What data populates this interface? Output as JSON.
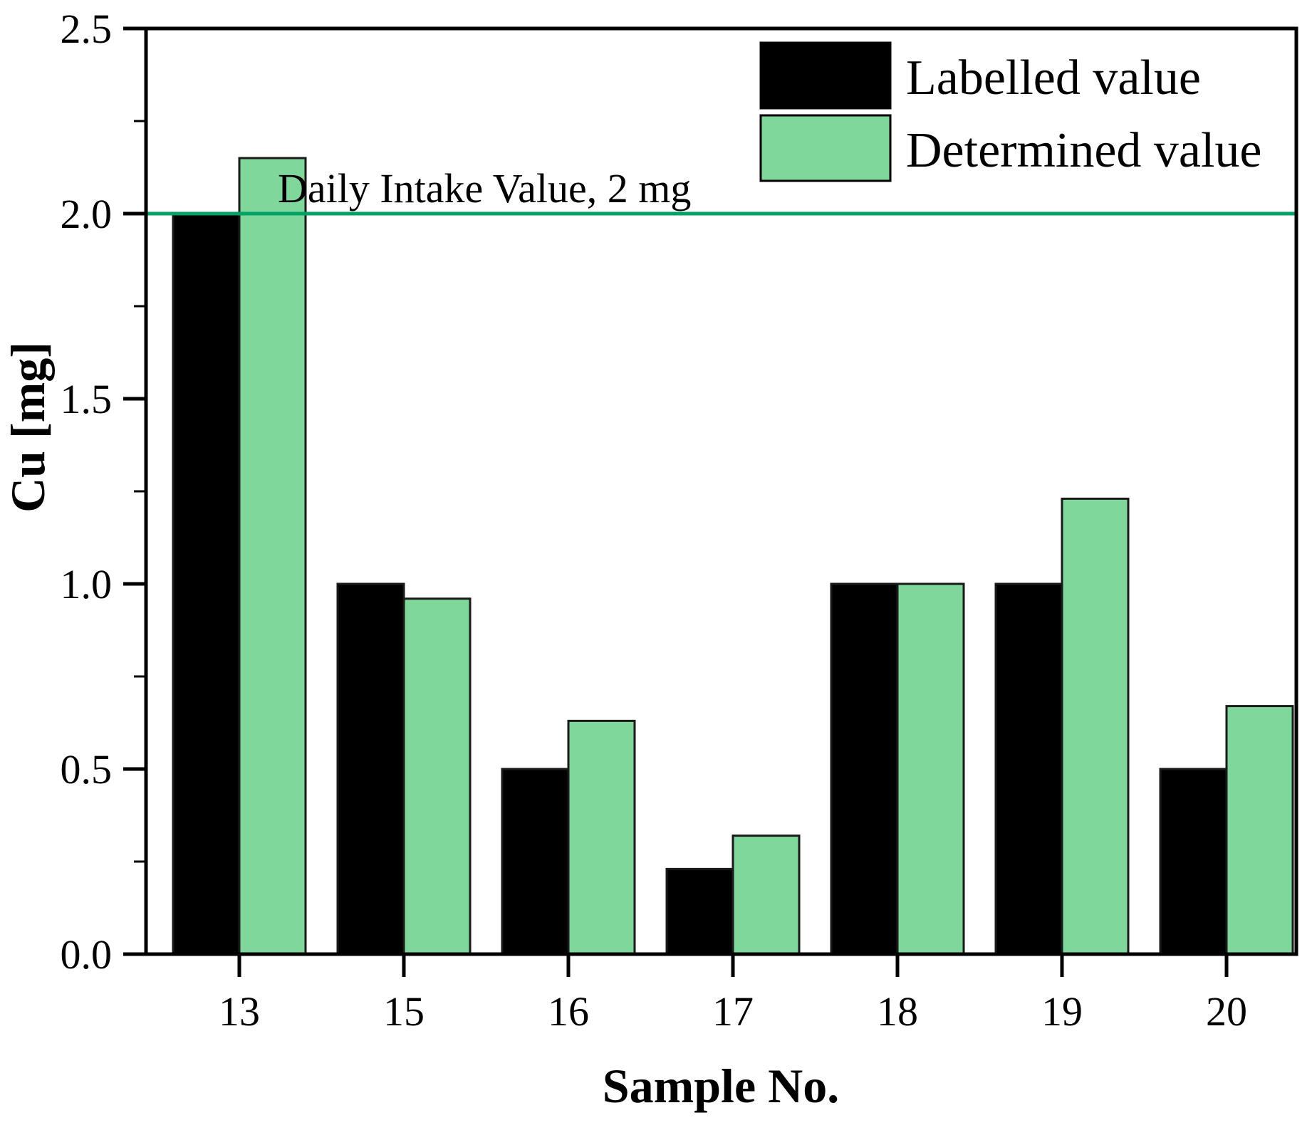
{
  "chart_data": {
    "type": "bar",
    "title": "",
    "categories": [
      "13",
      "15",
      "16",
      "17",
      "18",
      "19",
      "20"
    ],
    "series": [
      {
        "name": "Labelled value",
        "color": "#000000",
        "values": [
          2.0,
          1.0,
          0.5,
          0.23,
          1.0,
          1.0,
          0.5
        ]
      },
      {
        "name": "Determined value",
        "color": "#80d79c",
        "values": [
          2.15,
          0.96,
          0.63,
          0.32,
          1.0,
          1.23,
          0.67
        ]
      }
    ],
    "xlabel": "Sample No.",
    "ylabel": "Cu [mg]",
    "ylim": [
      0,
      2.5
    ],
    "yticks": [
      0.0,
      0.5,
      1.0,
      1.5,
      2.0,
      2.5
    ],
    "minor_tick_step": 0.25,
    "grid": false,
    "legend_position": "top-right",
    "bar_outline_color": "#1a1a1a",
    "reference_line": {
      "value": 2.0,
      "label": "Daily Intake Value, 2 mg",
      "color": "#00a266"
    }
  }
}
